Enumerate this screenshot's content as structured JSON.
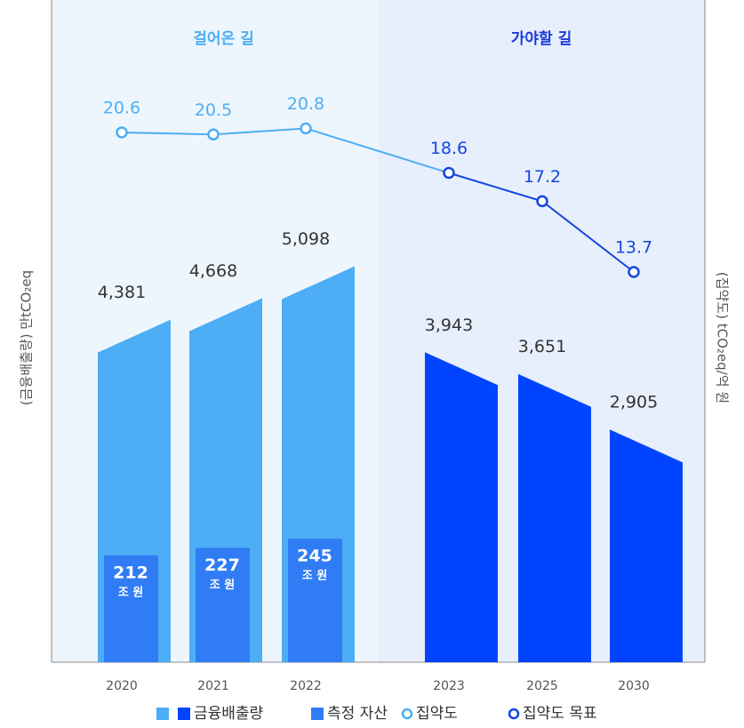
{
  "chart_data": {
    "type": "bar-line",
    "headers": [
      "걸어온 길",
      "가야할 길"
    ],
    "header_colors": [
      "#4aaef5",
      "#1a3bd6"
    ],
    "region_colors": [
      "#eef6fd",
      "#e8effc"
    ],
    "categories": [
      "2020",
      "2021",
      "2022",
      "2023",
      "2025",
      "2030"
    ],
    "ylabel": "(금융배출량) 만tCO₂eq",
    "y2label": "(집약도) tCO₂eq/억 원",
    "ylim": [
      0,
      8800
    ],
    "y2lim": [
      -5.6,
      26.8
    ],
    "y3lim": [
      0,
      1300
    ],
    "series": [
      {
        "name": "금융배출량",
        "colors": [
          "#4daef5",
          "#4daef5",
          "#4daef5",
          "#0044ff",
          "#0044ff",
          "#0044ff"
        ],
        "values": [
          4381,
          4668,
          5098,
          3943,
          3651,
          2905
        ],
        "value_labels": [
          "4,381",
          "4,668",
          "5,098",
          "3,943",
          "3,651",
          "2,905"
        ]
      },
      {
        "name": "측정 자산",
        "color": "#2f7cf5",
        "axis": "y3",
        "unit": "조 원",
        "values": [
          212,
          227,
          245,
          null,
          null,
          null
        ]
      },
      {
        "name": "집약도",
        "color": "#4daef5",
        "axis": "y2",
        "values": [
          20.6,
          20.5,
          20.8,
          null,
          null,
          null
        ]
      },
      {
        "name": "집약도 목표",
        "color": "#1446e0",
        "axis": "y2",
        "values": [
          null,
          null,
          null,
          18.6,
          17.2,
          13.7
        ]
      }
    ]
  }
}
